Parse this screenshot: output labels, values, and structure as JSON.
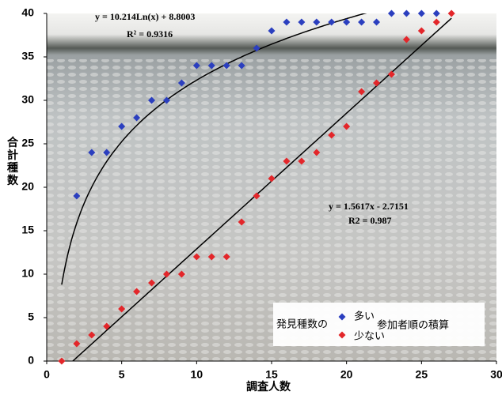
{
  "chart_data": {
    "type": "scatter",
    "xlabel": "調査人数",
    "ylabel": "合計種数",
    "x": [
      1,
      2,
      3,
      4,
      5,
      6,
      7,
      8,
      9,
      10,
      11,
      12,
      13,
      14,
      15,
      16,
      17,
      18,
      19,
      20,
      21,
      22,
      23,
      24,
      25,
      26,
      27
    ],
    "series": [
      {
        "name": "多い",
        "color": "#2b3fbf",
        "values": [
          null,
          19,
          24,
          24,
          27,
          28,
          30,
          30,
          32,
          34,
          34,
          34,
          34,
          36,
          38,
          39,
          39,
          39,
          39,
          39,
          39,
          39,
          40,
          40,
          40,
          40,
          null
        ]
      },
      {
        "name": "少ない",
        "color": "#e3262a",
        "values": [
          0,
          2,
          3,
          4,
          6,
          8,
          9,
          10,
          10,
          12,
          12,
          12,
          16,
          19,
          21,
          23,
          23,
          24,
          26,
          27,
          31,
          32,
          33,
          37,
          38,
          39,
          40
        ]
      }
    ],
    "legend_title": "発見種数の",
    "legend_note": "参加者順の積算",
    "trendlines": [
      {
        "kind": "log",
        "a": 10.214,
        "b": 8.8003,
        "equation": "y = 10.214Ln(x) + 8.8003",
        "r2": "R² = 0.9316"
      },
      {
        "kind": "linear",
        "a": 1.5617,
        "b": -2.7151,
        "equation": "y = 1.5617x - 2.7151",
        "r2": "R2 = 0.987"
      }
    ],
    "xlim": [
      0,
      30
    ],
    "xticks": [
      0,
      5,
      10,
      15,
      20,
      25,
      30
    ],
    "ylim": [
      0,
      40
    ],
    "yticks": [
      0,
      5,
      10,
      15,
      20,
      25,
      30,
      35,
      40
    ]
  }
}
